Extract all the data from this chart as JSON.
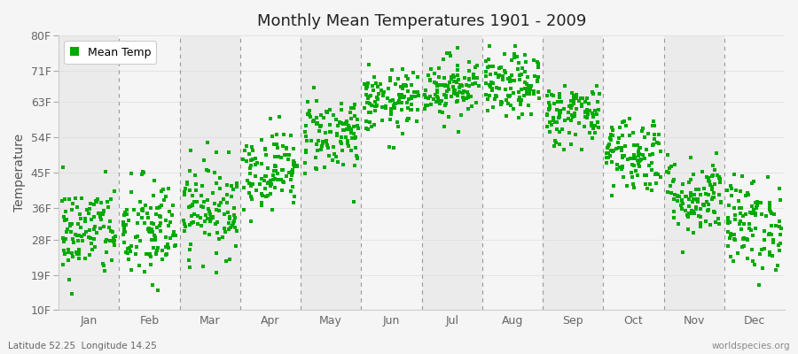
{
  "title": "Monthly Mean Temperatures 1901 - 2009",
  "ylabel": "Temperature",
  "xlabel_bottom_left": "Latitude 52.25  Longitude 14.25",
  "xlabel_bottom_right": "worldspecies.org",
  "ytick_labels": [
    "10F",
    "19F",
    "28F",
    "36F",
    "45F",
    "54F",
    "63F",
    "71F",
    "80F"
  ],
  "ytick_values": [
    10,
    19,
    28,
    36,
    45,
    54,
    63,
    71,
    80
  ],
  "month_labels": [
    "Jan",
    "Feb",
    "Mar",
    "Apr",
    "May",
    "Jun",
    "Jul",
    "Aug",
    "Sep",
    "Oct",
    "Nov",
    "Dec"
  ],
  "dot_color": "#00aa00",
  "bg_color": "#f5f5f5",
  "band_colors": [
    "#ebebeb",
    "#f5f5f5"
  ],
  "legend_label": "Mean Temp",
  "n_years": 109,
  "seed": 42,
  "monthly_mean_f": [
    30,
    30,
    36,
    46,
    55,
    63,
    67,
    67,
    60,
    50,
    39,
    32
  ],
  "monthly_std_f": [
    6,
    7,
    6,
    5,
    5,
    4,
    4,
    4,
    4,
    5,
    5,
    6
  ]
}
